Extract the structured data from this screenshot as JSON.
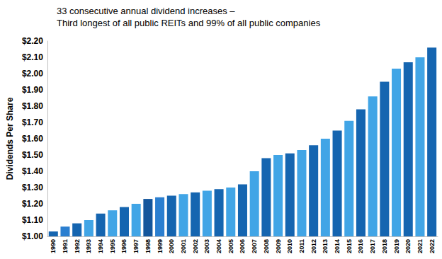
{
  "chart_data": {
    "type": "bar",
    "title": "33 consecutive annual dividend increases –\nThird longest of all public REITs and 99% of all public companies",
    "y_label": "Dividends Per Share",
    "categories": [
      "1990",
      "1991",
      "1992",
      "1993",
      "1994",
      "1995",
      "1996",
      "1997",
      "1998",
      "1999",
      "2000",
      "2001",
      "2002",
      "2003",
      "2004",
      "2005",
      "2006",
      "2007",
      "2008",
      "2009",
      "2010",
      "2011",
      "2012",
      "2013",
      "2014",
      "2015",
      "2016",
      "2017",
      "2018",
      "2019",
      "2020",
      "2021",
      "2022"
    ],
    "values": [
      1.03,
      1.06,
      1.08,
      1.1,
      1.14,
      1.16,
      1.18,
      1.2,
      1.23,
      1.24,
      1.25,
      1.26,
      1.27,
      1.28,
      1.29,
      1.3,
      1.32,
      1.4,
      1.48,
      1.5,
      1.51,
      1.53,
      1.56,
      1.6,
      1.65,
      1.71,
      1.78,
      1.86,
      1.95,
      2.03,
      2.07,
      2.1,
      2.16
    ],
    "colors": [
      "#1565b0",
      "#2b7fd0",
      "#1565b0",
      "#41a5e6",
      "#1565b0",
      "#41a5e6",
      "#1565b0",
      "#41a5e6",
      "#14569c",
      "#2b7fd0",
      "#1565b0",
      "#41a5e6",
      "#1565b0",
      "#41a5e6",
      "#1565b0",
      "#41a5e6",
      "#1565b0",
      "#41a5e6",
      "#1565b0",
      "#41a5e6",
      "#1565b0",
      "#41a5e6",
      "#1565b0",
      "#41a5e6",
      "#1565b0",
      "#41a5e6",
      "#1565b0",
      "#41a5e6",
      "#1565b0",
      "#41a5e6",
      "#1565b0",
      "#41a5e6",
      "#1565b0"
    ],
    "ylim": [
      1.0,
      2.2
    ],
    "yticks": [
      {
        "value": 1.0,
        "label": "$1.00"
      },
      {
        "value": 1.1,
        "label": "$1.10"
      },
      {
        "value": 1.2,
        "label": "$1.20"
      },
      {
        "value": 1.3,
        "label": "$1.30"
      },
      {
        "value": 1.4,
        "label": "$1.40"
      },
      {
        "value": 1.5,
        "label": "$1.50"
      },
      {
        "value": 1.6,
        "label": "$1.60"
      },
      {
        "value": 1.7,
        "label": "$1.70"
      },
      {
        "value": 1.8,
        "label": "$1.80"
      },
      {
        "value": 1.9,
        "label": "$1.90"
      },
      {
        "value": 2.0,
        "label": "$2.00"
      },
      {
        "value": 2.1,
        "label": "$2.10"
      },
      {
        "value": 2.2,
        "label": "$2.20"
      }
    ],
    "grid": false
  }
}
